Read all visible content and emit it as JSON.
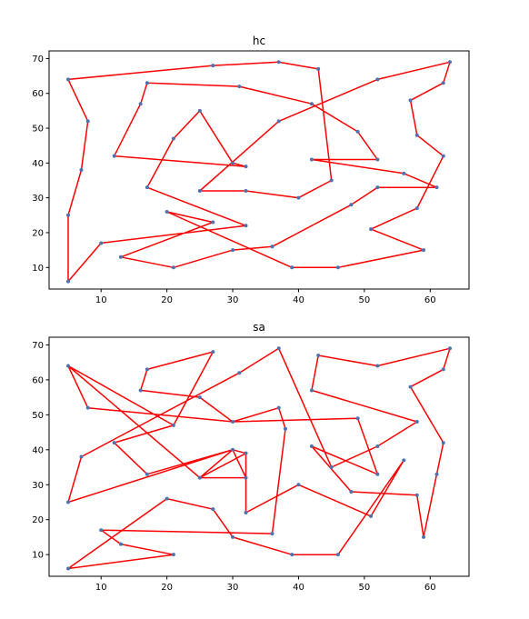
{
  "chart_data": [
    {
      "type": "line",
      "title": "hc",
      "xlim": [
        2.1,
        65.9
      ],
      "ylim": [
        3.8,
        72.2
      ],
      "xticks": [
        10,
        20,
        30,
        40,
        50,
        60
      ],
      "yticks": [
        10,
        20,
        30,
        40,
        50,
        60,
        70
      ],
      "grid": false,
      "line_color": "#ff0000",
      "marker_color": "#4c72b0",
      "series": [
        {
          "x": [
            5,
            27,
            37,
            43,
            42,
            17,
            16,
            10,
            5,
            5,
            7,
            8,
            5
          ],
          "y": [
            64,
            68,
            69,
            67,
            57,
            63,
            57,
            17,
            6,
            25,
            38,
            52,
            64
          ]
        }
      ],
      "path": [
        [
          5,
          64
        ],
        [
          27,
          68
        ],
        [
          37,
          69
        ],
        [
          43,
          67
        ],
        [
          45,
          35
        ],
        [
          40,
          30
        ],
        [
          32,
          32
        ],
        [
          25,
          32
        ],
        [
          37,
          52
        ],
        [
          52,
          64
        ],
        [
          63,
          69
        ],
        [
          62,
          63
        ],
        [
          57,
          58
        ],
        [
          58,
          48
        ],
        [
          62,
          42
        ],
        [
          58,
          27
        ],
        [
          51,
          21
        ],
        [
          59,
          15
        ],
        [
          46,
          10
        ],
        [
          39,
          10
        ],
        [
          20,
          26
        ],
        [
          27,
          23
        ],
        [
          13,
          13
        ],
        [
          21,
          10
        ],
        [
          30,
          15
        ],
        [
          36,
          16
        ],
        [
          48,
          28
        ],
        [
          52,
          33
        ],
        [
          61,
          33
        ],
        [
          56,
          37
        ],
        [
          42,
          41
        ],
        [
          52,
          41
        ],
        [
          49,
          49
        ],
        [
          42,
          57
        ],
        [
          31,
          62
        ],
        [
          17,
          63
        ],
        [
          16,
          57
        ],
        [
          12,
          42
        ],
        [
          32,
          39
        ],
        [
          30,
          40
        ],
        [
          25,
          55
        ],
        [
          21,
          47
        ],
        [
          17,
          33
        ],
        [
          32,
          22
        ],
        [
          10,
          17
        ],
        [
          5,
          6
        ],
        [
          5,
          25
        ],
        [
          7,
          38
        ],
        [
          8,
          52
        ],
        [
          5,
          64
        ]
      ]
    },
    {
      "type": "line",
      "title": "sa",
      "xlim": [
        2.1,
        65.9
      ],
      "ylim": [
        3.8,
        72.2
      ],
      "xticks": [
        10,
        20,
        30,
        40,
        50,
        60
      ],
      "yticks": [
        10,
        20,
        30,
        40,
        50,
        60,
        70
      ],
      "grid": false,
      "line_color": "#ff0000",
      "marker_color": "#4c72b0",
      "path": [
        [
          5,
          64
        ],
        [
          21,
          47
        ],
        [
          27,
          68
        ],
        [
          17,
          63
        ],
        [
          16,
          57
        ],
        [
          25,
          55
        ],
        [
          30,
          48
        ],
        [
          37,
          52
        ],
        [
          38,
          46
        ],
        [
          36,
          16
        ],
        [
          10,
          17
        ],
        [
          13,
          13
        ],
        [
          21,
          10
        ],
        [
          5,
          6
        ],
        [
          20,
          26
        ],
        [
          27,
          23
        ],
        [
          30,
          15
        ],
        [
          39,
          10
        ],
        [
          46,
          10
        ],
        [
          56,
          37
        ],
        [
          51,
          21
        ],
        [
          40,
          30
        ],
        [
          32,
          22
        ],
        [
          32,
          39
        ],
        [
          30,
          40
        ],
        [
          25,
          32
        ],
        [
          32,
          32
        ],
        [
          30,
          40
        ],
        [
          17,
          33
        ],
        [
          12,
          42
        ],
        [
          21,
          47
        ],
        [
          5,
          64
        ],
        [
          8,
          52
        ],
        [
          30,
          48
        ],
        [
          49,
          49
        ],
        [
          52,
          33
        ],
        [
          42,
          41
        ],
        [
          48,
          28
        ],
        [
          58,
          27
        ],
        [
          59,
          15
        ],
        [
          61,
          33
        ],
        [
          62,
          42
        ],
        [
          57,
          58
        ],
        [
          62,
          63
        ],
        [
          63,
          69
        ],
        [
          52,
          64
        ],
        [
          43,
          67
        ],
        [
          42,
          57
        ],
        [
          58,
          48
        ],
        [
          52,
          41
        ],
        [
          45,
          35
        ],
        [
          37,
          69
        ],
        [
          31,
          62
        ],
        [
          7,
          38
        ],
        [
          5,
          25
        ],
        [
          30,
          40
        ],
        [
          32,
          39
        ],
        [
          25,
          32
        ],
        [
          5,
          64
        ]
      ]
    }
  ]
}
